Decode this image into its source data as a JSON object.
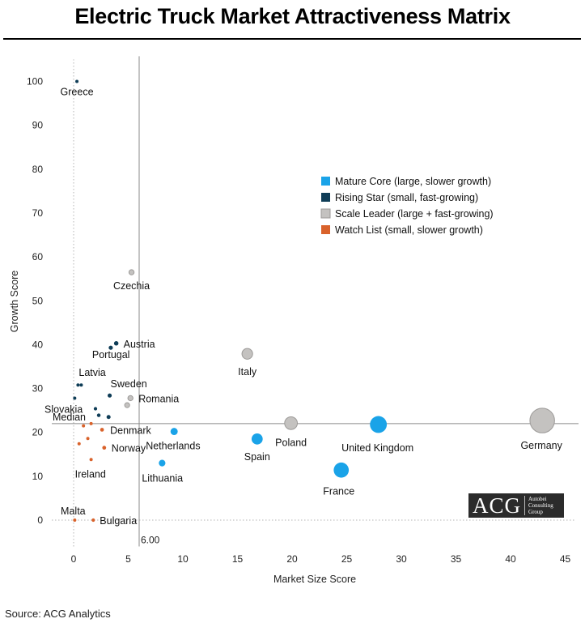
{
  "title": "Electric Truck Market Attractiveness Matrix",
  "source": "Source: ACG Analytics",
  "logo": {
    "main": "ACG",
    "line1": "Autobei",
    "line2": "Consulting",
    "line3": "Group"
  },
  "chart_data": {
    "type": "scatter",
    "xlabel": "Market Size Score",
    "ylabel": "Growth Score",
    "xlim": [
      -2,
      46
    ],
    "ylim": [
      -6,
      105
    ],
    "xticks": [
      0,
      5,
      10,
      15,
      20,
      25,
      30,
      35,
      40,
      45
    ],
    "yticks": [
      0,
      10,
      20,
      30,
      40,
      50,
      60,
      70,
      80,
      90,
      100
    ],
    "median_x": 6.0,
    "median_x_label": "6.00",
    "median_y": 22.0,
    "median_y_label": "Median",
    "grid": false,
    "legend_position": "top-right",
    "categories": [
      {
        "id": "mature",
        "name": "Mature Core (large, slower growth)",
        "color": "#1aa3e8"
      },
      {
        "id": "rising",
        "name": "Rising Star (small, fast-growing)",
        "color": "#0f3d57"
      },
      {
        "id": "scale",
        "name": "Scale Leader (large + fast-growing)",
        "color": "#c4c2c0"
      },
      {
        "id": "watch",
        "name": "Watch List (small, slower growth)",
        "color": "#d9622b"
      }
    ],
    "points": [
      {
        "label": "Greece",
        "x": 0.3,
        "y": 100,
        "cat": "rising"
      },
      {
        "label": "Czechia",
        "x": 5.3,
        "y": 56.5,
        "cat": "scale"
      },
      {
        "label": "Austria",
        "x": 3.9,
        "y": 40.3,
        "cat": "rising"
      },
      {
        "label": "Portugal",
        "x": 3.4,
        "y": 39.3,
        "cat": "rising"
      },
      {
        "label": "Latvia",
        "x": 0.4,
        "y": 30.8,
        "cat": "rising"
      },
      {
        "label": "",
        "x": 0.7,
        "y": 30.8,
        "cat": "rising"
      },
      {
        "label": "Sweden",
        "x": 3.3,
        "y": 28.4,
        "cat": "rising"
      },
      {
        "label": "Romania",
        "x": 5.2,
        "y": 27.8,
        "cat": "scale"
      },
      {
        "label": "",
        "x": 4.9,
        "y": 26.2,
        "cat": "scale"
      },
      {
        "label": "",
        "x": 0.1,
        "y": 27.8,
        "cat": "rising"
      },
      {
        "label": "Slovakia",
        "x": 2.0,
        "y": 25.4,
        "cat": "rising"
      },
      {
        "label": "",
        "x": 2.3,
        "y": 23.9,
        "cat": "rising"
      },
      {
        "label": "",
        "x": 3.2,
        "y": 23.5,
        "cat": "rising"
      },
      {
        "label": "",
        "x": 1.6,
        "y": 22.0,
        "cat": "watch"
      },
      {
        "label": "",
        "x": 0.9,
        "y": 21.5,
        "cat": "watch"
      },
      {
        "label": "Denmark",
        "x": 2.6,
        "y": 20.6,
        "cat": "watch"
      },
      {
        "label": "",
        "x": 1.3,
        "y": 18.6,
        "cat": "watch"
      },
      {
        "label": "",
        "x": 0.5,
        "y": 17.4,
        "cat": "watch"
      },
      {
        "label": "Norway",
        "x": 2.8,
        "y": 16.5,
        "cat": "watch"
      },
      {
        "label": "Ireland",
        "x": 1.6,
        "y": 13.8,
        "cat": "watch"
      },
      {
        "label": "Netherlands",
        "x": 9.2,
        "y": 20.2,
        "cat": "mature"
      },
      {
        "label": "Lithuania",
        "x": 8.1,
        "y": 13.0,
        "cat": "mature"
      },
      {
        "label": "Italy",
        "x": 15.9,
        "y": 37.9,
        "cat": "scale"
      },
      {
        "label": "Spain",
        "x": 16.8,
        "y": 18.5,
        "cat": "mature"
      },
      {
        "label": "Poland",
        "x": 19.9,
        "y": 22.1,
        "cat": "scale"
      },
      {
        "label": "France",
        "x": 24.5,
        "y": 11.4,
        "cat": "mature"
      },
      {
        "label": "United Kingdom",
        "x": 27.9,
        "y": 21.8,
        "cat": "mature"
      },
      {
        "label": "Germany",
        "x": 42.9,
        "y": 22.7,
        "cat": "scale"
      },
      {
        "label": "Malta",
        "x": 0.1,
        "y": 0.0,
        "cat": "watch"
      },
      {
        "label": "Bulgaria",
        "x": 1.8,
        "y": 0.0,
        "cat": "watch"
      }
    ]
  }
}
